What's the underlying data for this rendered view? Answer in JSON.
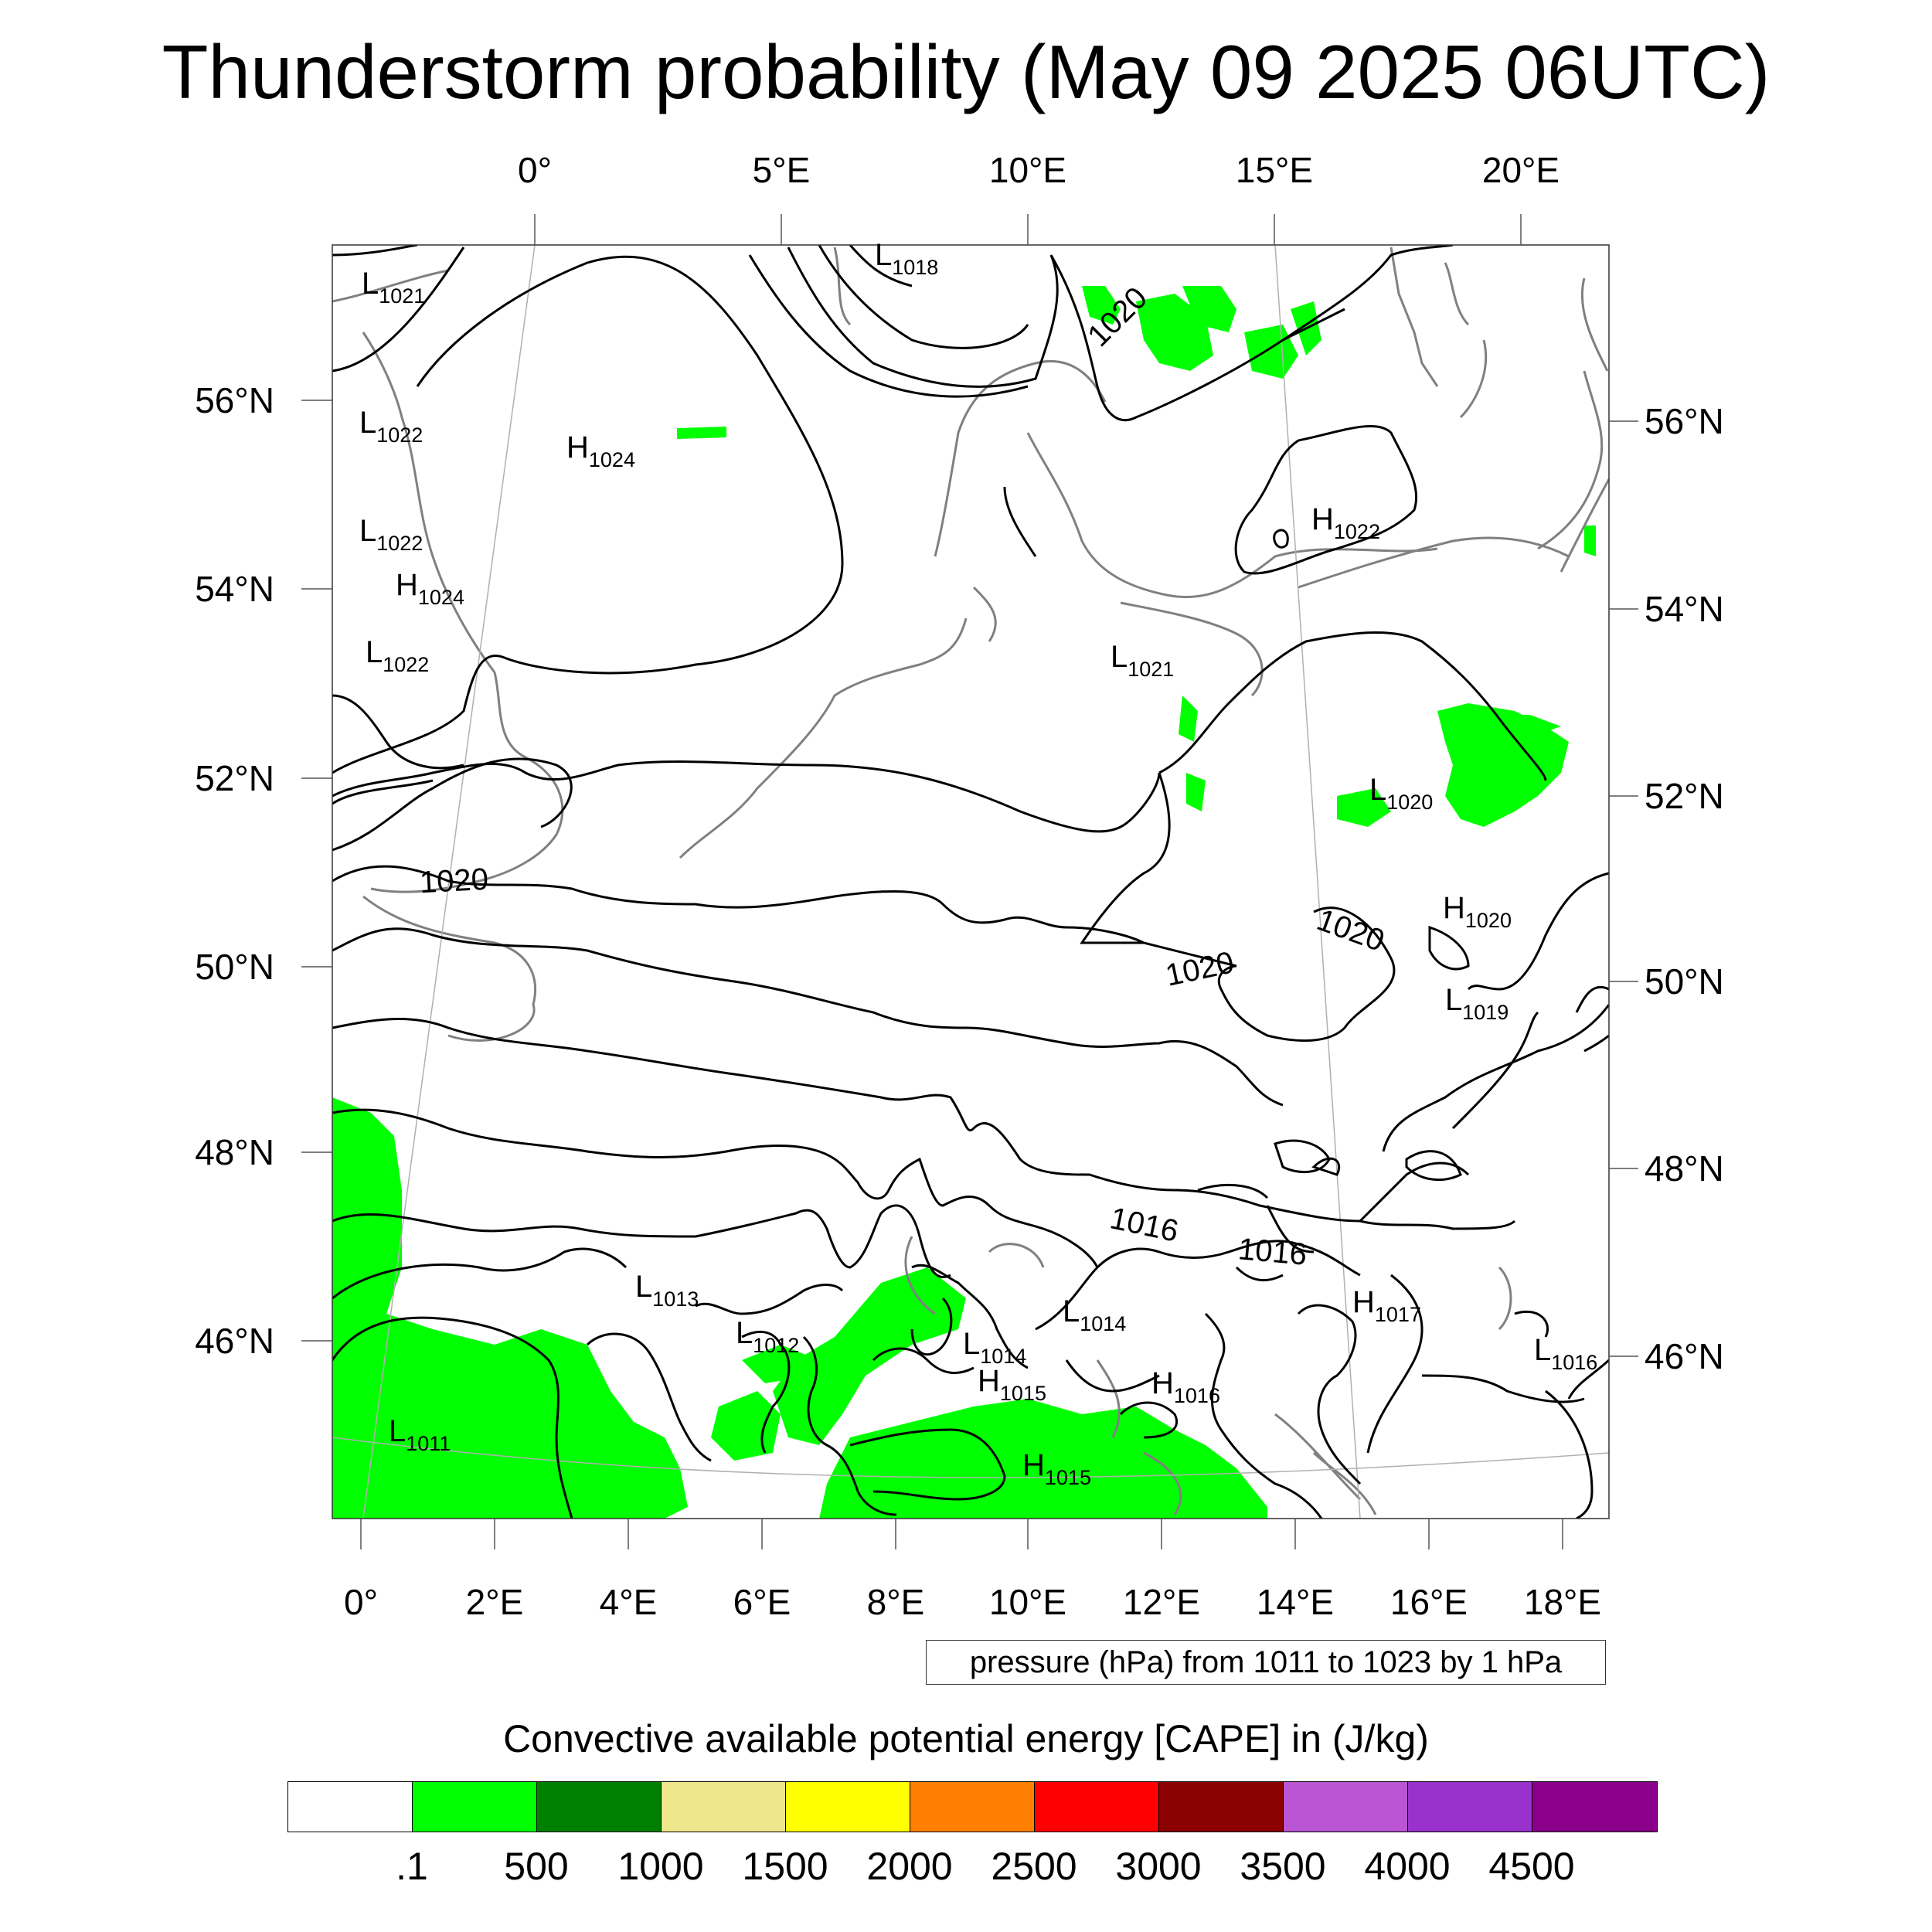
{
  "title": "Thunderstorm probability (May 09 2025 06UTC)",
  "map": {
    "top_lon_labels": [
      "0°",
      "5°E",
      "10°E",
      "15°E",
      "20°E"
    ],
    "bottom_lon_labels": [
      "0°",
      "2°E",
      "4°E",
      "6°E",
      "8°E",
      "10°E",
      "12°E",
      "14°E",
      "16°E",
      "18°E"
    ],
    "left_lat_labels": [
      "56°N",
      "54°N",
      "52°N",
      "50°N",
      "48°N",
      "46°N"
    ],
    "right_lat_labels": [
      "56°N",
      "54°N",
      "52°N",
      "50°N",
      "48°N",
      "46°N"
    ],
    "pressure_centers": [
      {
        "type": "L",
        "value": "1021"
      },
      {
        "type": "L",
        "value": "1018"
      },
      {
        "type": "L",
        "value": "1022"
      },
      {
        "type": "H",
        "value": "1024"
      },
      {
        "type": "L",
        "value": "1022"
      },
      {
        "type": "H",
        "value": "1024"
      },
      {
        "type": "L",
        "value": "1022"
      },
      {
        "type": "H",
        "value": "1022"
      },
      {
        "type": "L",
        "value": "1021"
      },
      {
        "type": "L",
        "value": "1020"
      },
      {
        "type": "H",
        "value": "1020"
      },
      {
        "type": "L",
        "value": "1019"
      },
      {
        "type": "L",
        "value": "1013"
      },
      {
        "type": "L",
        "value": "1012"
      },
      {
        "type": "L",
        "value": "1014"
      },
      {
        "type": "L",
        "value": "1014"
      },
      {
        "type": "H",
        "value": "1015"
      },
      {
        "type": "H",
        "value": "1016"
      },
      {
        "type": "H",
        "value": "1017"
      },
      {
        "type": "L",
        "value": "1016"
      },
      {
        "type": "L",
        "value": "1011"
      },
      {
        "type": "H",
        "value": "1015"
      }
    ],
    "contour_labels": [
      "1020",
      "1020",
      "1020",
      "1020",
      "1016",
      "1016"
    ],
    "cape_fill_color": "#00ff00",
    "land_border_color": "#808080",
    "isobar_color": "#000000"
  },
  "contour_info": "pressure (hPa) from 1011 to 1023 by 1 hPa",
  "colorbar": {
    "title": "Convective available potential energy [CAPE] in (J/kg)",
    "colors": [
      "#ffffff",
      "#00ff00",
      "#008000",
      "#f0e68c",
      "#ffff00",
      "#ff8000",
      "#ff0000",
      "#8b0000",
      "#ba55d3",
      "#9932cc",
      "#8b008b"
    ],
    "labels": [
      ".1",
      "500",
      "1000",
      "1500",
      "2000",
      "2500",
      "3000",
      "3500",
      "4000",
      "4500"
    ]
  }
}
